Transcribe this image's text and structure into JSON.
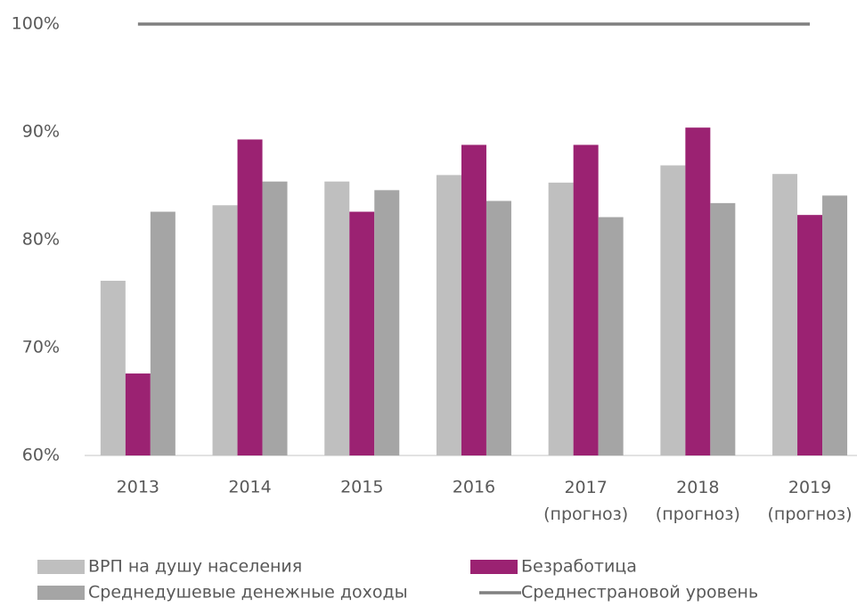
{
  "chart_data": {
    "type": "bar",
    "categories": [
      "2013",
      "2014",
      "2015",
      "2016",
      "2017 (прогноз)",
      "2018 (прогноз)",
      "2019 (прогноз)"
    ],
    "series": [
      {
        "name": "ВРП на душу населения",
        "color": "#bfbfbf",
        "values": [
          76.2,
          83.2,
          85.4,
          86.0,
          85.3,
          86.9,
          86.1
        ]
      },
      {
        "name": "Безработица",
        "color": "#9b2272",
        "values": [
          67.6,
          89.3,
          82.6,
          88.8,
          88.8,
          90.4,
          82.3
        ]
      },
      {
        "name": "Среднедушевые денежные доходы",
        "color": "#a5a5a5",
        "values": [
          82.6,
          85.4,
          84.6,
          83.6,
          82.1,
          83.4,
          84.1
        ]
      },
      {
        "name": "Среднестрановой уровень",
        "color": "#808080",
        "type": "line",
        "values": [
          100,
          100,
          100,
          100,
          100,
          100,
          100
        ]
      }
    ],
    "ylim": [
      60,
      100
    ],
    "yticks": [
      {
        "value": 60,
        "label": "60%"
      },
      {
        "value": 70,
        "label": "70%"
      },
      {
        "value": 80,
        "label": "80%"
      },
      {
        "value": 90,
        "label": "90%"
      },
      {
        "value": 100,
        "label": "100%"
      }
    ],
    "legend": "bottom"
  }
}
